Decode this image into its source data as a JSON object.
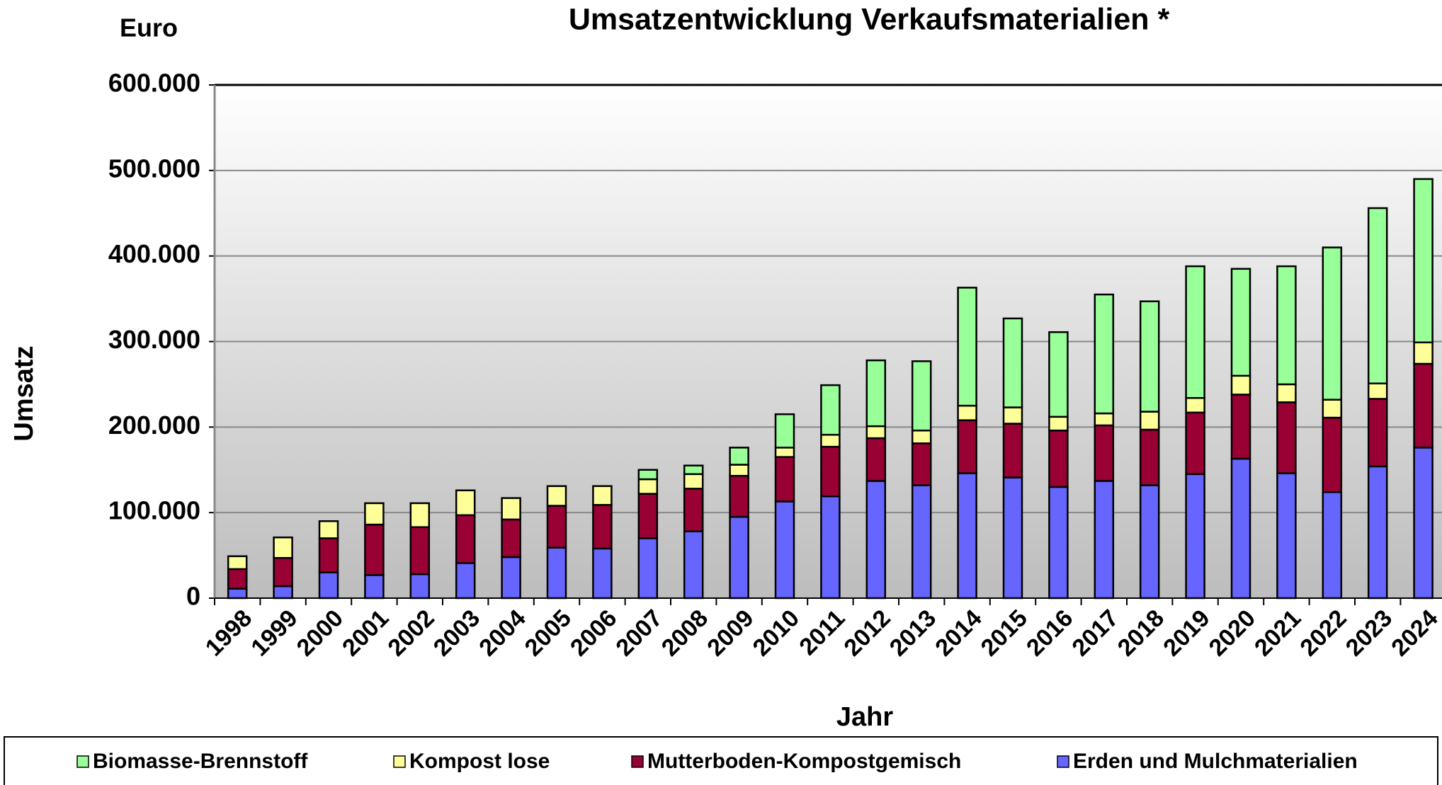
{
  "chart_data": {
    "type": "stacked_bar",
    "title": "Umsatzentwicklung Verkaufsmaterialien *",
    "y_unit": "Euro",
    "y_label": "Umsatz",
    "x_label": "Jahr",
    "categories": [
      "1998",
      "1999",
      "2000",
      "2001",
      "2002",
      "2003",
      "2004",
      "2005",
      "2006",
      "2007",
      "2008",
      "2009",
      "2010",
      "2011",
      "2012",
      "2013",
      "2014",
      "2015",
      "2016",
      "2017",
      "2018",
      "2019",
      "2020",
      "2021",
      "2022",
      "2023",
      "2024"
    ],
    "series": [
      {
        "name": "Biomasse-Brennstoff",
        "color": "#99ff99",
        "values": [
          null,
          null,
          null,
          null,
          null,
          null,
          null,
          null,
          null,
          11000,
          10000,
          20000,
          39000,
          58000,
          77000,
          81000,
          138000,
          104000,
          99000,
          139000,
          129000,
          154000,
          125000,
          138000,
          178000,
          205000,
          191000
        ]
      },
      {
        "name": "Kompost lose",
        "color": "#ffff99",
        "values": [
          15000,
          24000,
          20000,
          25000,
          28000,
          29000,
          25000,
          23000,
          22000,
          17000,
          17000,
          13000,
          11000,
          14000,
          14000,
          15000,
          17000,
          19000,
          16000,
          14000,
          21000,
          17000,
          22000,
          21000,
          21000,
          18000,
          25000
        ]
      },
      {
        "name": "Mutterboden-Kompostgemisch",
        "color": "#990033",
        "values": [
          23000,
          33000,
          40000,
          59000,
          55000,
          56000,
          44000,
          49000,
          51000,
          52000,
          50000,
          48000,
          52000,
          58000,
          50000,
          49000,
          62000,
          63000,
          66000,
          65000,
          65000,
          72000,
          75000,
          83000,
          87000,
          79000,
          98000
        ]
      },
      {
        "name": "Erden und Mulchmaterialien",
        "color": "#6666ff",
        "values": [
          11000,
          14000,
          30000,
          27000,
          28000,
          41000,
          48000,
          59000,
          58000,
          70000,
          78000,
          95000,
          113000,
          119000,
          137000,
          132000,
          146000,
          141000,
          130000,
          137000,
          132000,
          145000,
          163000,
          146000,
          124000,
          154000,
          176000
        ]
      }
    ],
    "ylim": [
      0,
      600000
    ],
    "yticks": [
      0,
      {
        "value": 100000,
        "label": "100.000"
      },
      {
        "value": 200000,
        "label": "200.000"
      },
      {
        "value": 300000,
        "label": "300.000"
      },
      {
        "value": 400000,
        "label": "400.000"
      },
      {
        "value": 500000,
        "label": "500.000"
      },
      {
        "value": 600000,
        "label": "600.000"
      }
    ],
    "grid": true,
    "legend": "bottom"
  }
}
